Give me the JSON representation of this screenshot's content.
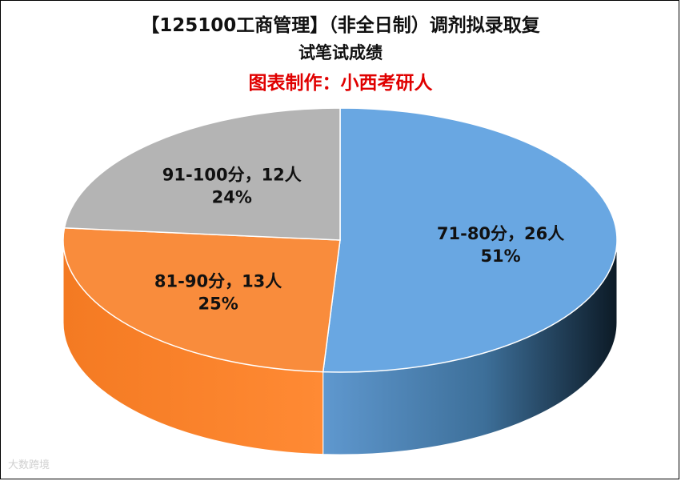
{
  "chart_data": {
    "type": "pie",
    "title": "【125100工商管理】（非全日制）调剂拟录取复试笔试成绩",
    "title_line1": "【125100工商管理】（非全日制）调剂拟录取复",
    "title_line2": "试笔试成绩",
    "subtitle": "图表制作：小西考研人",
    "style": "3d",
    "legend": "none",
    "slices": [
      {
        "category": "71-80分",
        "count": 26,
        "percent": 51,
        "label": "71-80分，26人",
        "percent_label": "51%",
        "color": "#69a7e2",
        "side_color_dark": "#0c1a26"
      },
      {
        "category": "81-90分",
        "count": 13,
        "percent": 25,
        "label": "81-90分，13人",
        "percent_label": "25%",
        "color": "#f98c3c",
        "side_color_dark": "#f47a22"
      },
      {
        "category": "91-100分",
        "count": 12,
        "percent": 24,
        "label": "91-100分，12人",
        "percent_label": "24%",
        "color": "#b4b4b4",
        "side_color_dark": "#9a9a9a"
      }
    ]
  },
  "watermark": "大数跨境"
}
